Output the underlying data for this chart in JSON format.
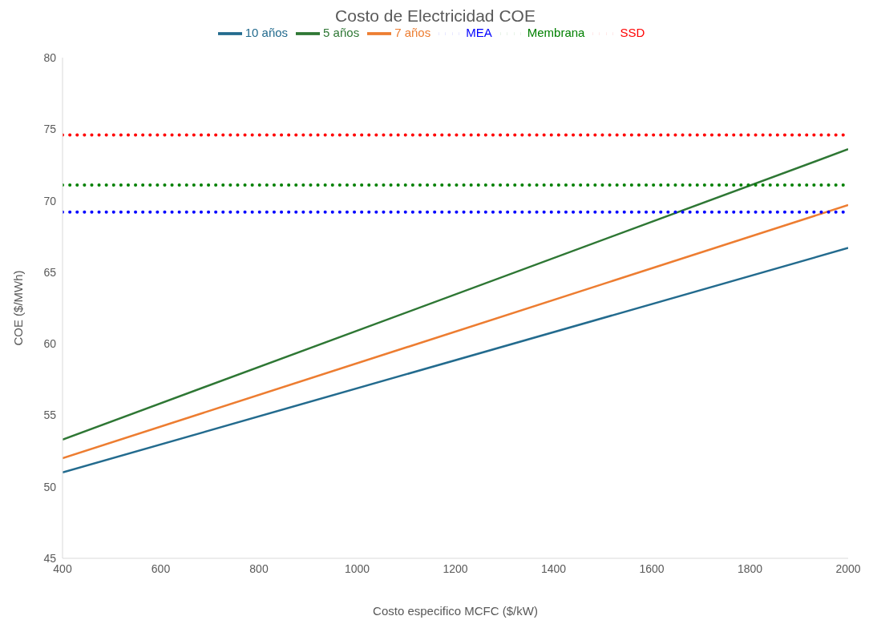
{
  "chart_data": {
    "type": "line",
    "title": "Costo de Electricidad COE",
    "xlabel": "Costo especifico MCFC ($/kW)",
    "ylabel": "COE ($/MWh)",
    "x": [
      400,
      2000
    ],
    "series": [
      {
        "name": "10 años",
        "color": "#236b8e",
        "values": [
          51.0,
          66.7
        ],
        "line_style": "solid"
      },
      {
        "name": "7 años",
        "color": "#ed7d31",
        "values": [
          52.0,
          69.7
        ],
        "line_style": "solid"
      },
      {
        "name": "5 años",
        "color": "#2e7734",
        "values": [
          53.3,
          73.6
        ],
        "line_style": "solid"
      },
      {
        "name": "SSD",
        "color": "#ff0000",
        "values": [
          74.6,
          74.6
        ],
        "line_style": "dotted"
      },
      {
        "name": "Membrana",
        "color": "#008000",
        "values": [
          71.1,
          71.1
        ],
        "line_style": "dotted"
      },
      {
        "name": "MEA",
        "color": "#0000ff",
        "values": [
          69.2,
          69.2
        ],
        "line_style": "dotted"
      }
    ],
    "xlim": [
      400,
      2000
    ],
    "xticks": [
      400,
      600,
      800,
      1000,
      1200,
      1400,
      1600,
      1800,
      2000
    ],
    "ylim": [
      45,
      80
    ],
    "yticks": [
      45,
      50,
      55,
      60,
      65,
      70,
      75,
      80
    ],
    "grid": false,
    "legend": "top",
    "marker": "none"
  }
}
